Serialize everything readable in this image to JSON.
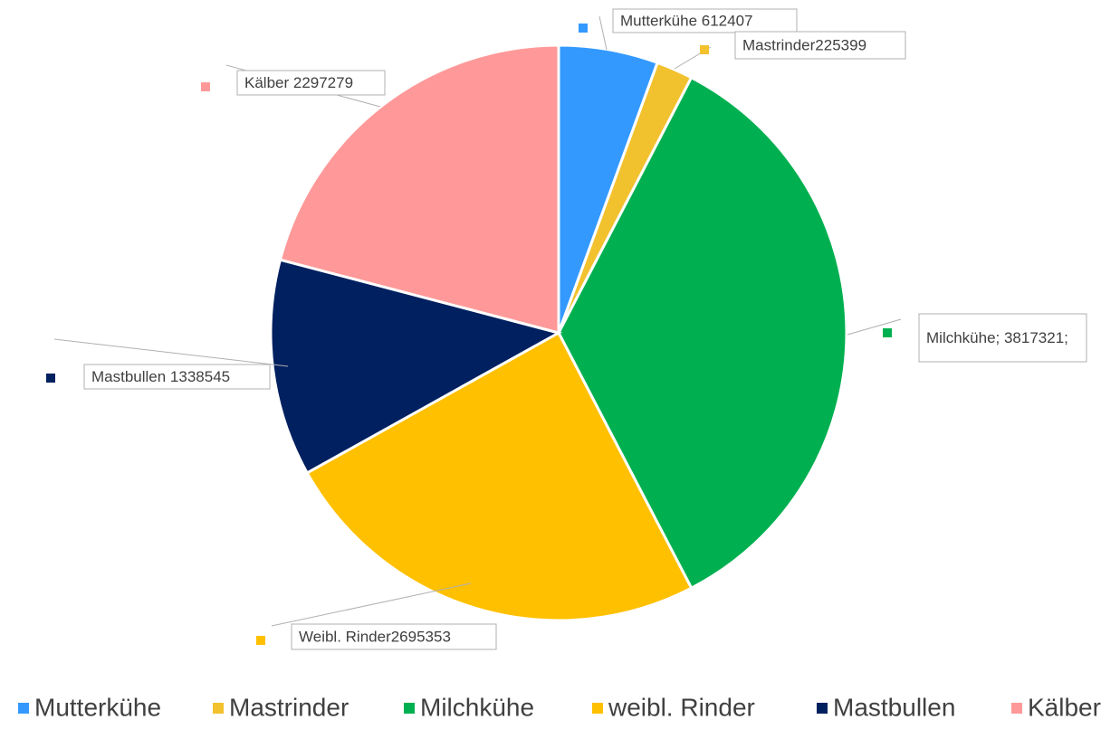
{
  "chart_data": {
    "type": "pie",
    "categories": [
      "Mutterkühe",
      "Mastrinder",
      "Milchkühe",
      "weibl. Rinder",
      "Mastbullen",
      "Kälber"
    ],
    "values": [
      612407,
      225399,
      3817321,
      2695353,
      1338545,
      2297279
    ],
    "value_labels": [
      "Mutterkühe 612407",
      "Mastrinder225399",
      "Milchkühe; 3817321;",
      "Weibl. Rinder2695353",
      "Mastbullen 1338545",
      "Kälber 2297279"
    ],
    "colors": [
      "#3399ff",
      "#f2c12e",
      "#00b050",
      "#ffc000",
      "#002060",
      "#ff9999"
    ]
  }
}
